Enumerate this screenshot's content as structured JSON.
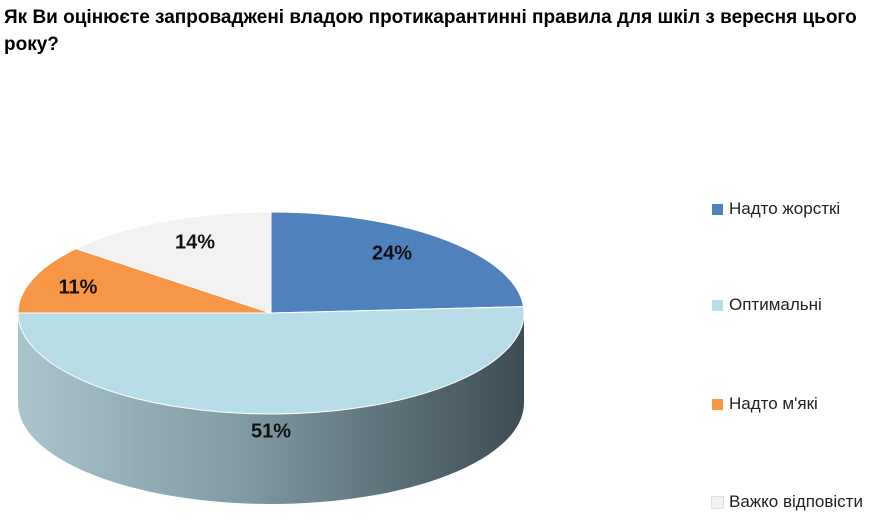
{
  "chart_data": {
    "type": "pie",
    "title": "Як Ви оцінюєте запроваджені владою протикарантинні правила для шкіл з вересня цього року?",
    "unit": "%",
    "slices": [
      {
        "label": "Надто жорсткі",
        "value": 24,
        "value_label": "24%",
        "color": "#4f81bd"
      },
      {
        "label": "Оптимальні",
        "value": 51,
        "value_label": "51%",
        "color": "#b7dde8"
      },
      {
        "label": "Надто м'які",
        "value": 11,
        "value_label": "11%",
        "color": "#f79646"
      },
      {
        "label": "Важко відповісти",
        "value": 14,
        "value_label": "14%",
        "color": "#f2f2f2"
      }
    ],
    "legend_position": "right",
    "style": "3d-tilted"
  }
}
